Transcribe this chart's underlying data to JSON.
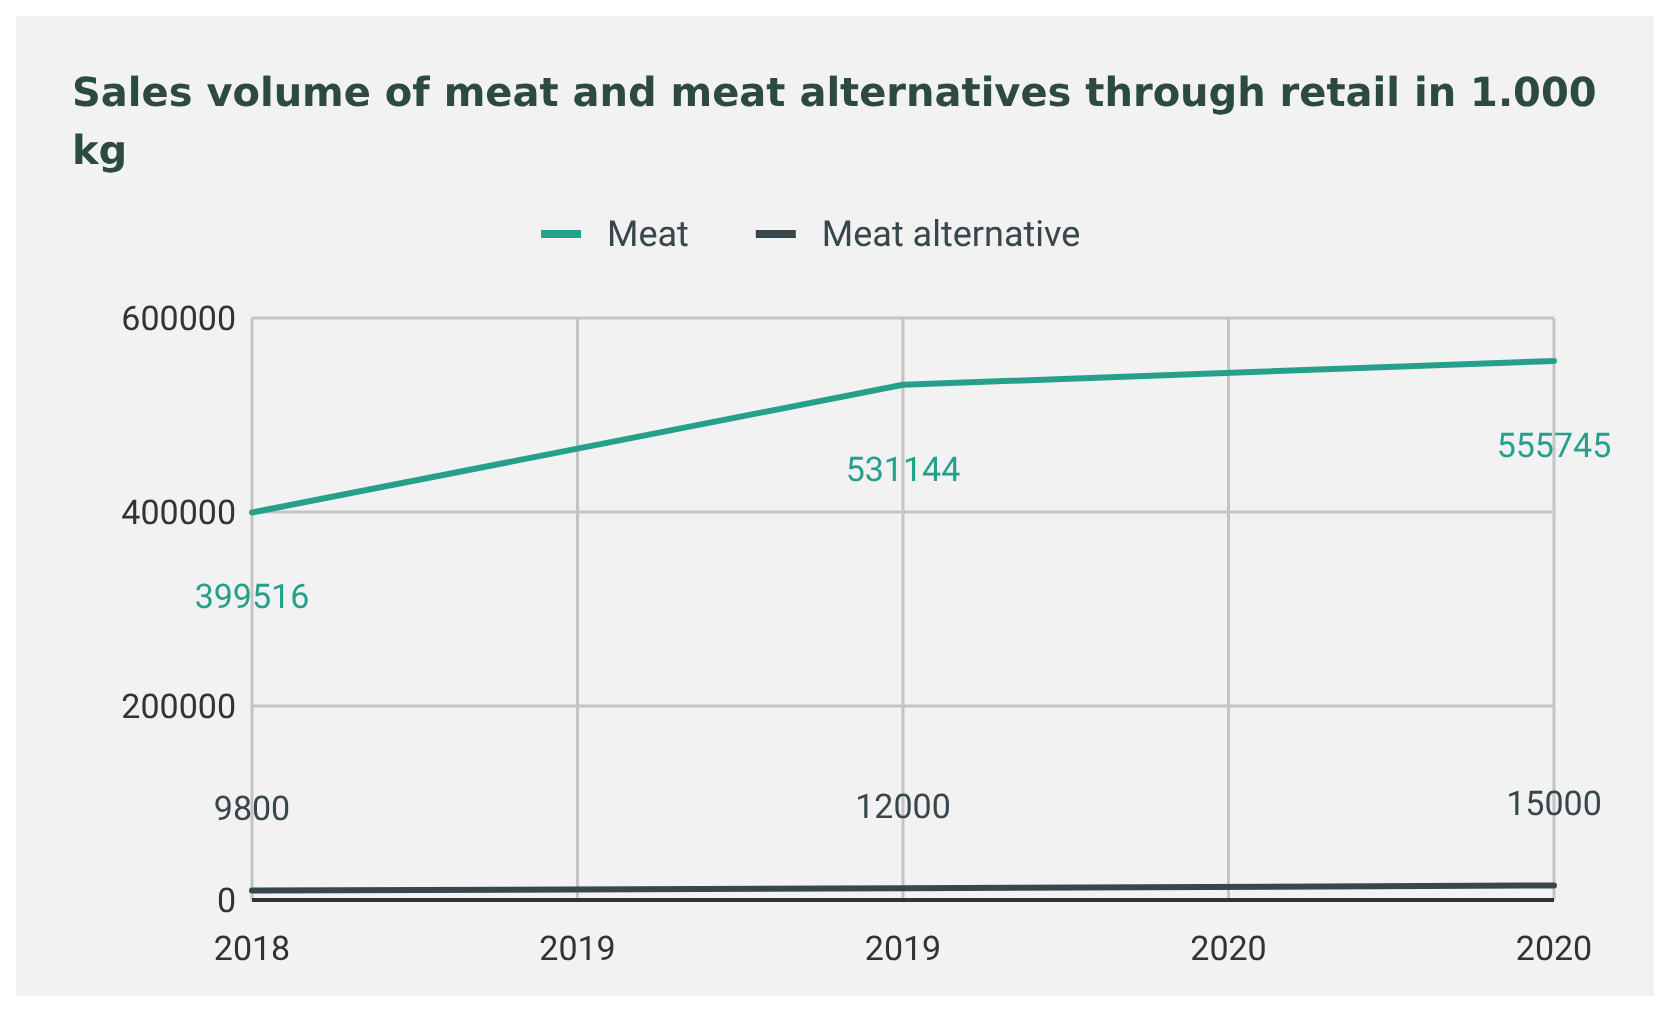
{
  "chart_data": {
    "type": "line",
    "title": "Sales volume of meat and meat alternatives through retail in 1.000 kg",
    "x": [
      2018,
      2019,
      2020
    ],
    "series": [
      {
        "name": "Meat",
        "color": "#26a08b",
        "values": [
          399516,
          531144,
          555745
        ]
      },
      {
        "name": "Meat alternative",
        "color": "#37474a",
        "values": [
          9800,
          12000,
          15000
        ]
      }
    ],
    "xlim": [
      2018,
      2020
    ],
    "xticks": [
      2018,
      {
        "value": 2018.5,
        "label": "2019"
      },
      2019,
      {
        "value": 2019.5,
        "label": "2020"
      },
      2020
    ],
    "ylim": [
      0,
      600000
    ],
    "yticks": [
      0,
      200000,
      400000,
      600000
    ],
    "grid": true,
    "legend": "top",
    "data_labels": true,
    "marker": "none",
    "line_style": "solid"
  }
}
